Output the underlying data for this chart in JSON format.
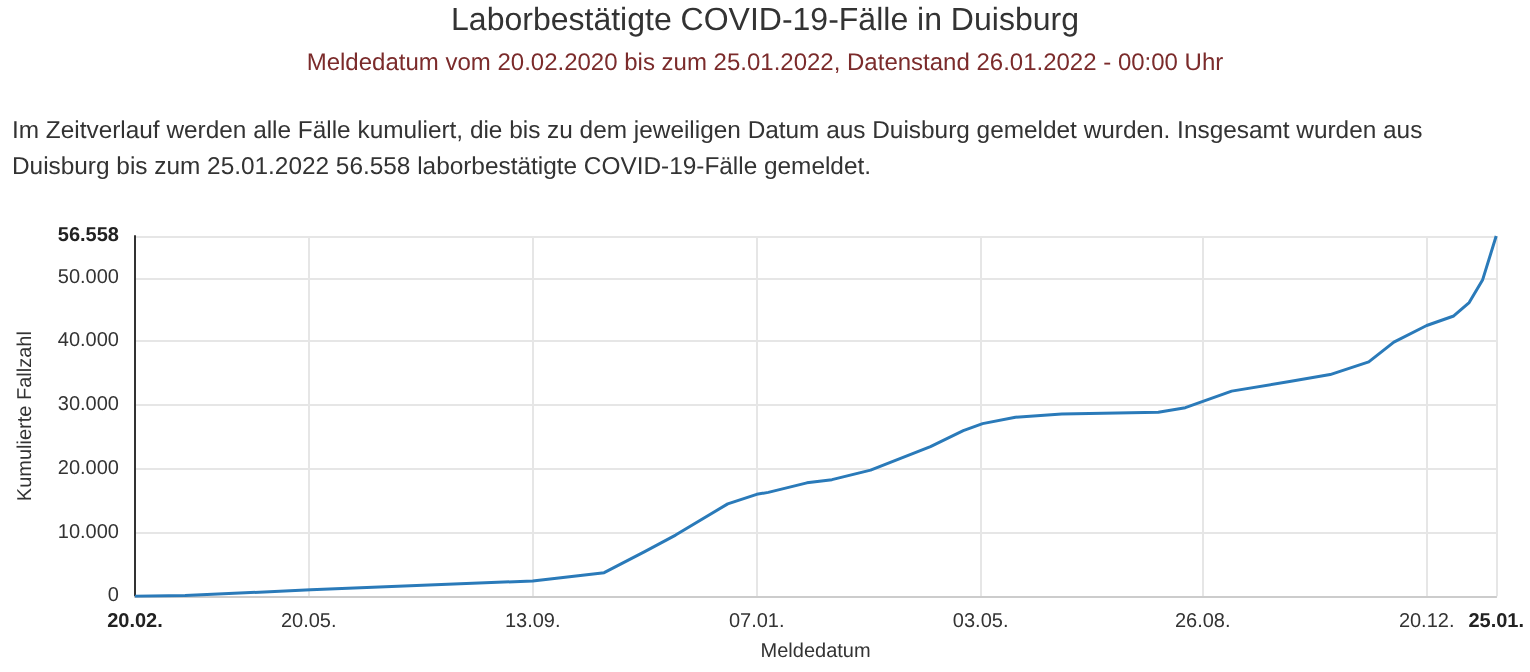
{
  "chart_data": {
    "type": "line",
    "title": "Laborbestätigte COVID-19-Fälle in Duisburg",
    "subtitle": "Meldedatum vom 20.02.2020 bis zum 25.01.2022, Datenstand 26.01.2022 - 00:00 Uhr",
    "annotations": [
      "Im Zeitverlauf werden alle Fälle kumuliert, die bis zu dem jeweiligen Datum aus Duisburg gemeldet wurden. Insgesamt wurden aus Duisburg bis zum 25.01.2022 56.558 laborbestätigte COVID-19-Fälle gemeldet."
    ],
    "xlabel": "Meldedatum",
    "ylabel": "Kumulierte Fallzahl",
    "x": [
      "2020-02-20",
      "2020-03-17",
      "2020-05-21",
      "2020-09-13",
      "2020-10-20",
      "2020-11-10",
      "2020-11-26",
      "2020-12-23",
      "2021-01-07",
      "2021-01-13",
      "2021-02-02",
      "2021-02-15",
      "2021-03-07",
      "2021-04-07",
      "2021-04-24",
      "2021-05-04",
      "2021-05-21",
      "2021-06-14",
      "2021-08-03",
      "2021-08-17",
      "2021-09-10",
      "2021-10-10",
      "2021-10-31",
      "2021-11-20",
      "2021-12-03",
      "2021-12-20",
      "2022-01-03",
      "2022-01-11",
      "2022-01-18",
      "2022-01-25"
    ],
    "series": [
      {
        "color": "#2a7ab9",
        "values": [
          0,
          100,
          1000,
          2400,
          3700,
          7000,
          9600,
          14500,
          16000,
          16300,
          17800,
          18300,
          19800,
          23500,
          26000,
          27100,
          28100,
          28600,
          28900,
          29600,
          32200,
          33700,
          34800,
          36800,
          39900,
          42500,
          44000,
          46100,
          49700,
          56558
        ]
      }
    ],
    "xlim": [
      "2020-02-20",
      "2022-01-25"
    ],
    "xticks": [
      {
        "value": "2020-02-20",
        "label": "20.02."
      },
      {
        "value": "2020-05-20",
        "label": "20.05."
      },
      {
        "value": "2020-09-13",
        "label": "13.09."
      },
      {
        "value": "2021-01-07",
        "label": "07.01."
      },
      {
        "value": "2021-05-03",
        "label": "03.05."
      },
      {
        "value": "2021-08-26",
        "label": "26.08."
      },
      {
        "value": "2021-12-20",
        "label": "20.12."
      },
      {
        "value": "2022-01-25",
        "label": "25.01."
      }
    ],
    "ylim": [
      0,
      56558
    ],
    "yticks": [
      0,
      {
        "value": 10000,
        "label": "10.000"
      },
      {
        "value": 20000,
        "label": "20.000"
      },
      {
        "value": 30000,
        "label": "30.000"
      },
      {
        "value": 40000,
        "label": "40.000"
      },
      {
        "value": 50000,
        "label": "50.000"
      },
      {
        "value": 56558,
        "label": "56.558"
      }
    ],
    "grid": true,
    "marker": "none",
    "line_style": "solid"
  }
}
